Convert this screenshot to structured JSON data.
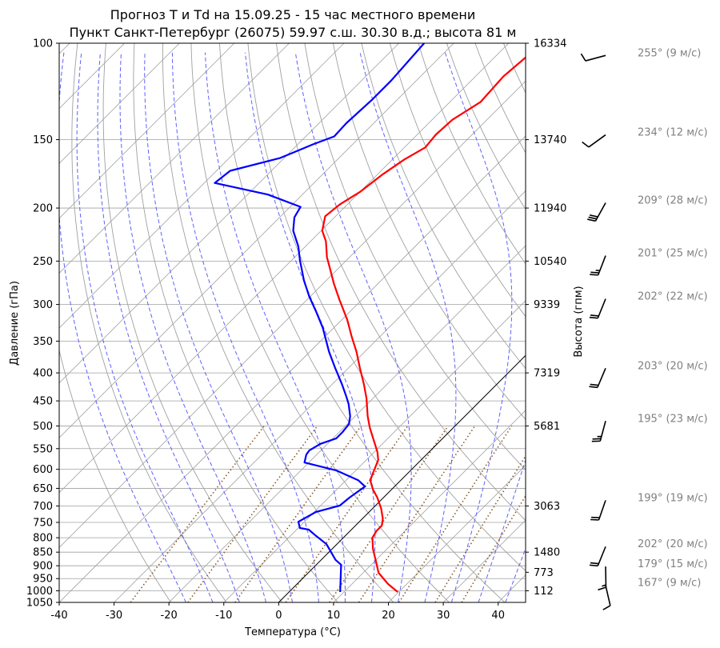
{
  "chart_data": {
    "type": "line",
    "subtype": "skew-t log-p",
    "title": [
      "Прогноз T и Td на 15.09.25 - 15 час местного времени",
      "Пункт Санкт-Петербург (26075) 59.97 с.ш. 30.30 в.д.; высота 81 м"
    ],
    "xlabel": "Температура (°C)",
    "ylabel": "Давление (гПа)",
    "y2label": "Высота (гпм)",
    "xlim": [
      -40,
      45
    ],
    "ylim": [
      1050,
      100
    ],
    "grid": true,
    "xticks": [
      "-40",
      "-30",
      "-20",
      "-10",
      "0",
      "10",
      "20",
      "30",
      "40"
    ],
    "yticks": [
      "100",
      "150",
      "200",
      "250",
      "300",
      "350",
      "400",
      "450",
      "500",
      "550",
      "600",
      "650",
      "700",
      "750",
      "800",
      "850",
      "900",
      "950",
      "1000",
      "1050"
    ],
    "height_ticks": [
      {
        "p": 100,
        "label": "16334"
      },
      {
        "p": 150,
        "label": "13740"
      },
      {
        "p": 200,
        "label": "11940"
      },
      {
        "p": 250,
        "label": "10540"
      },
      {
        "p": 300,
        "label": "9339"
      },
      {
        "p": 400,
        "label": "7319"
      },
      {
        "p": 500,
        "label": "5681"
      },
      {
        "p": 700,
        "label": "3063"
      },
      {
        "p": 850,
        "label": "1480"
      },
      {
        "p": 925,
        "label": "773"
      },
      {
        "p": 1000,
        "label": "112"
      }
    ],
    "series": [
      {
        "name": "T",
        "color": "#ff0000",
        "points": [
          [
            1005,
            19.8
          ],
          [
            972,
            16.6
          ],
          [
            927,
            12.8
          ],
          [
            896,
            11.0
          ],
          [
            838,
            7.4
          ],
          [
            800,
            5.3
          ],
          [
            778,
            4.8
          ],
          [
            760,
            4.8
          ],
          [
            738,
            3.7
          ],
          [
            708,
            1.6
          ],
          [
            676,
            -1.1
          ],
          [
            653,
            -3.4
          ],
          [
            628,
            -5.6
          ],
          [
            607,
            -6.5
          ],
          [
            577,
            -7.8
          ],
          [
            558,
            -9.4
          ],
          [
            534,
            -11.9
          ],
          [
            504,
            -15.2
          ],
          [
            480,
            -17.7
          ],
          [
            445,
            -21.2
          ],
          [
            419,
            -24.3
          ],
          [
            392,
            -27.9
          ],
          [
            366,
            -31.5
          ],
          [
            343,
            -35.2
          ],
          [
            320,
            -39.0
          ],
          [
            294,
            -44.1
          ],
          [
            275,
            -48.0
          ],
          [
            257,
            -51.7
          ],
          [
            246,
            -54.1
          ],
          [
            230,
            -57.2
          ],
          [
            220,
            -59.8
          ],
          [
            207,
            -61.9
          ],
          [
            197,
            -61.4
          ],
          [
            187,
            -60.0
          ],
          [
            174,
            -59.1
          ],
          [
            163,
            -57.8
          ],
          [
            155,
            -56.2
          ],
          [
            147,
            -56.6
          ],
          [
            138,
            -56.3
          ],
          [
            128,
            -54.4
          ],
          [
            115,
            -54.9
          ],
          [
            106,
            -54.3
          ],
          [
            100,
            -54.5
          ]
        ]
      },
      {
        "name": "Td",
        "color": "#0000ff",
        "points": [
          [
            1005,
            9.3
          ],
          [
            896,
            4.5
          ],
          [
            878,
            2.6
          ],
          [
            822,
            -1.9
          ],
          [
            794,
            -5.3
          ],
          [
            773,
            -7.8
          ],
          [
            768,
            -9.7
          ],
          [
            748,
            -11.1
          ],
          [
            718,
            -9.7
          ],
          [
            699,
            -6.5
          ],
          [
            676,
            -6.2
          ],
          [
            653,
            -5.6
          ],
          [
            645,
            -5.4
          ],
          [
            628,
            -7.8
          ],
          [
            603,
            -13.5
          ],
          [
            583,
            -20.8
          ],
          [
            564,
            -21.9
          ],
          [
            554,
            -22.1
          ],
          [
            539,
            -21.3
          ],
          [
            527,
            -19.4
          ],
          [
            513,
            -19.4
          ],
          [
            496,
            -19.7
          ],
          [
            480,
            -20.9
          ],
          [
            456,
            -23.4
          ],
          [
            441,
            -25.3
          ],
          [
            419,
            -28.3
          ],
          [
            392,
            -32.4
          ],
          [
            366,
            -36.5
          ],
          [
            331,
            -42.0
          ],
          [
            310,
            -46.0
          ],
          [
            290,
            -50.2
          ],
          [
            271,
            -54.1
          ],
          [
            249,
            -58.5
          ],
          [
            235,
            -61.3
          ],
          [
            220,
            -65.1
          ],
          [
            208,
            -67.3
          ],
          [
            199,
            -68.1
          ],
          [
            189,
            -76.3
          ],
          [
            180,
            -88.1
          ],
          [
            171,
            -87.5
          ],
          [
            162,
            -80.7
          ],
          [
            153,
            -77.2
          ],
          [
            148,
            -74.8
          ],
          [
            140,
            -75.0
          ],
          [
            127,
            -74.6
          ],
          [
            117,
            -74.6
          ],
          [
            100,
            -75.4
          ]
        ]
      }
    ],
    "winds": [
      {
        "p": 106,
        "dir": 255,
        "speed": 9,
        "label": "255° (9 м/с)"
      },
      {
        "p": 148,
        "dir": 234,
        "speed": 12,
        "label": "234° (12 м/с)"
      },
      {
        "p": 197,
        "dir": 209,
        "speed": 28,
        "label": "209° (28 м/с)"
      },
      {
        "p": 246,
        "dir": 201,
        "speed": 25,
        "label": "201° (25 м/с)"
      },
      {
        "p": 295,
        "dir": 202,
        "speed": 22,
        "label": "202° (22 м/с)"
      },
      {
        "p": 395,
        "dir": 203,
        "speed": 20,
        "label": "203° (20 м/с)"
      },
      {
        "p": 493,
        "dir": 195,
        "speed": 23,
        "label": "195° (23 м/с)"
      },
      {
        "p": 688,
        "dir": 199,
        "speed": 19,
        "label": "199° (19 м/с)"
      },
      {
        "p": 836,
        "dir": 202,
        "speed": 20,
        "label": "202° (20 м/с)"
      },
      {
        "p": 909,
        "dir": 179,
        "speed": 15,
        "label": "179° (15 м/с)"
      },
      {
        "p": 984,
        "dir": 167,
        "speed": 9,
        "label": "167° (9 м/с)"
      }
    ],
    "colors": {
      "isotherm": "#a0a0a0",
      "dry_adiabat": "#a0a0a0",
      "moist_adiabat": "#6060ff",
      "mixing_ratio": "#8b5a2b",
      "zero_isotherm": "#000000"
    }
  }
}
